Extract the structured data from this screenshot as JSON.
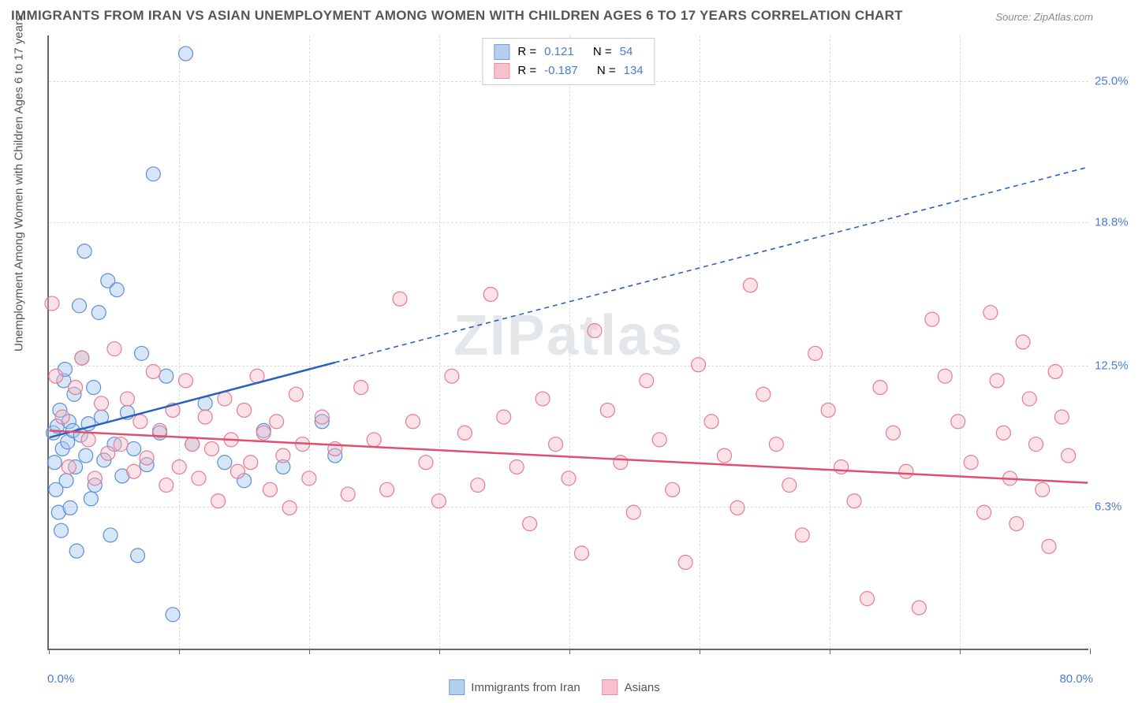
{
  "title": "IMMIGRANTS FROM IRAN VS ASIAN UNEMPLOYMENT AMONG WOMEN WITH CHILDREN AGES 6 TO 17 YEARS CORRELATION CHART",
  "source": "Source: ZipAtlas.com",
  "ylabel": "Unemployment Among Women with Children Ages 6 to 17 years",
  "watermark": "ZIPatlas",
  "chart": {
    "type": "scatter",
    "xlim": [
      0,
      80
    ],
    "ylim": [
      0,
      27
    ],
    "xticks": [
      0,
      10,
      20,
      30,
      40,
      50,
      60,
      70,
      80
    ],
    "yticks": [
      6.3,
      12.5,
      18.8,
      25.0
    ],
    "ytick_labels": [
      "6.3%",
      "12.5%",
      "18.8%",
      "25.0%"
    ],
    "x_start_label": "0.0%",
    "x_end_label": "80.0%",
    "background_color": "#ffffff",
    "grid_color": "#dddddd",
    "marker_radius": 9,
    "marker_stroke_width": 1.2,
    "line_width": 2.5,
    "series": [
      {
        "name": "Immigrants from Iran",
        "fill": "#a7c7ec",
        "stroke": "#5b8fd6",
        "fill_opacity": 0.45,
        "line_color": "#2b5fc0",
        "R": "0.121",
        "N": "54",
        "trend": {
          "x1": 0,
          "y1": 9.3,
          "x2": 22,
          "y2": 12.6,
          "dash_x2": 80,
          "dash_y2": 21.2
        },
        "points": [
          [
            0.3,
            9.5
          ],
          [
            0.4,
            8.2
          ],
          [
            0.5,
            7.0
          ],
          [
            0.6,
            9.8
          ],
          [
            0.7,
            6.0
          ],
          [
            0.8,
            10.5
          ],
          [
            0.9,
            5.2
          ],
          [
            1.0,
            8.8
          ],
          [
            1.1,
            11.8
          ],
          [
            1.2,
            12.3
          ],
          [
            1.3,
            7.4
          ],
          [
            1.4,
            9.1
          ],
          [
            1.5,
            10.0
          ],
          [
            1.6,
            6.2
          ],
          [
            1.8,
            9.6
          ],
          [
            1.9,
            11.2
          ],
          [
            2.0,
            8.0
          ],
          [
            2.1,
            4.3
          ],
          [
            2.3,
            15.1
          ],
          [
            2.4,
            9.4
          ],
          [
            2.5,
            12.8
          ],
          [
            2.7,
            17.5
          ],
          [
            2.8,
            8.5
          ],
          [
            3.0,
            9.9
          ],
          [
            3.2,
            6.6
          ],
          [
            3.4,
            11.5
          ],
          [
            3.5,
            7.2
          ],
          [
            3.8,
            14.8
          ],
          [
            4.0,
            10.2
          ],
          [
            4.2,
            8.3
          ],
          [
            4.5,
            16.2
          ],
          [
            4.7,
            5.0
          ],
          [
            5.0,
            9.0
          ],
          [
            5.2,
            15.8
          ],
          [
            5.6,
            7.6
          ],
          [
            6.0,
            10.4
          ],
          [
            6.5,
            8.8
          ],
          [
            6.8,
            4.1
          ],
          [
            7.1,
            13.0
          ],
          [
            7.5,
            8.1
          ],
          [
            8.0,
            20.9
          ],
          [
            8.5,
            9.5
          ],
          [
            9.0,
            12.0
          ],
          [
            9.5,
            1.5
          ],
          [
            10.5,
            26.2
          ],
          [
            11.0,
            9.0
          ],
          [
            12.0,
            10.8
          ],
          [
            13.5,
            8.2
          ],
          [
            15.0,
            7.4
          ],
          [
            16.5,
            9.6
          ],
          [
            18.0,
            8.0
          ],
          [
            21.0,
            10.0
          ],
          [
            22.0,
            8.5
          ]
        ]
      },
      {
        "name": "Asians",
        "fill": "#f5b6c4",
        "stroke": "#e77a93",
        "fill_opacity": 0.4,
        "line_color": "#e0506e",
        "R": "-0.187",
        "N": "134",
        "trend": {
          "x1": 0,
          "y1": 9.6,
          "x2": 80,
          "y2": 7.3
        },
        "points": [
          [
            0.2,
            15.2
          ],
          [
            0.5,
            12.0
          ],
          [
            1.0,
            10.2
          ],
          [
            1.5,
            8.0
          ],
          [
            2.0,
            11.5
          ],
          [
            2.5,
            12.8
          ],
          [
            3.0,
            9.2
          ],
          [
            3.5,
            7.5
          ],
          [
            4.0,
            10.8
          ],
          [
            4.5,
            8.6
          ],
          [
            5.0,
            13.2
          ],
          [
            5.5,
            9.0
          ],
          [
            6.0,
            11.0
          ],
          [
            6.5,
            7.8
          ],
          [
            7.0,
            10.0
          ],
          [
            7.5,
            8.4
          ],
          [
            8.0,
            12.2
          ],
          [
            8.5,
            9.6
          ],
          [
            9.0,
            7.2
          ],
          [
            9.5,
            10.5
          ],
          [
            10.0,
            8.0
          ],
          [
            10.5,
            11.8
          ],
          [
            11.0,
            9.0
          ],
          [
            11.5,
            7.5
          ],
          [
            12.0,
            10.2
          ],
          [
            12.5,
            8.8
          ],
          [
            13.0,
            6.5
          ],
          [
            13.5,
            11.0
          ],
          [
            14.0,
            9.2
          ],
          [
            14.5,
            7.8
          ],
          [
            15.0,
            10.5
          ],
          [
            15.5,
            8.2
          ],
          [
            16.0,
            12.0
          ],
          [
            16.5,
            9.5
          ],
          [
            17.0,
            7.0
          ],
          [
            17.5,
            10.0
          ],
          [
            18.0,
            8.5
          ],
          [
            18.5,
            6.2
          ],
          [
            19.0,
            11.2
          ],
          [
            19.5,
            9.0
          ],
          [
            20.0,
            7.5
          ],
          [
            21.0,
            10.2
          ],
          [
            22.0,
            8.8
          ],
          [
            23.0,
            6.8
          ],
          [
            24.0,
            11.5
          ],
          [
            25.0,
            9.2
          ],
          [
            26.0,
            7.0
          ],
          [
            27.0,
            15.4
          ],
          [
            28.0,
            10.0
          ],
          [
            29.0,
            8.2
          ],
          [
            30.0,
            6.5
          ],
          [
            31.0,
            12.0
          ],
          [
            32.0,
            9.5
          ],
          [
            33.0,
            7.2
          ],
          [
            34.0,
            15.6
          ],
          [
            35.0,
            10.2
          ],
          [
            36.0,
            8.0
          ],
          [
            37.0,
            5.5
          ],
          [
            38.0,
            11.0
          ],
          [
            39.0,
            9.0
          ],
          [
            40.0,
            7.5
          ],
          [
            41.0,
            4.2
          ],
          [
            42.0,
            14.0
          ],
          [
            43.0,
            10.5
          ],
          [
            44.0,
            8.2
          ],
          [
            45.0,
            6.0
          ],
          [
            46.0,
            11.8
          ],
          [
            47.0,
            9.2
          ],
          [
            48.0,
            7.0
          ],
          [
            49.0,
            3.8
          ],
          [
            50.0,
            12.5
          ],
          [
            51.0,
            10.0
          ],
          [
            52.0,
            8.5
          ],
          [
            53.0,
            6.2
          ],
          [
            54.0,
            16.0
          ],
          [
            55.0,
            11.2
          ],
          [
            56.0,
            9.0
          ],
          [
            57.0,
            7.2
          ],
          [
            58.0,
            5.0
          ],
          [
            59.0,
            13.0
          ],
          [
            60.0,
            10.5
          ],
          [
            61.0,
            8.0
          ],
          [
            62.0,
            6.5
          ],
          [
            63.0,
            2.2
          ],
          [
            64.0,
            11.5
          ],
          [
            65.0,
            9.5
          ],
          [
            66.0,
            7.8
          ],
          [
            67.0,
            1.8
          ],
          [
            68.0,
            14.5
          ],
          [
            69.0,
            12.0
          ],
          [
            70.0,
            10.0
          ],
          [
            71.0,
            8.2
          ],
          [
            72.0,
            6.0
          ],
          [
            72.5,
            14.8
          ],
          [
            73.0,
            11.8
          ],
          [
            73.5,
            9.5
          ],
          [
            74.0,
            7.5
          ],
          [
            74.5,
            5.5
          ],
          [
            75.0,
            13.5
          ],
          [
            75.5,
            11.0
          ],
          [
            76.0,
            9.0
          ],
          [
            76.5,
            7.0
          ],
          [
            77.0,
            4.5
          ],
          [
            77.5,
            12.2
          ],
          [
            78.0,
            10.2
          ],
          [
            78.5,
            8.5
          ]
        ]
      }
    ]
  },
  "legend_labels": {
    "r_eq": "R  =",
    "n_eq": "N  ="
  },
  "bottom_legend": {
    "s1": "Immigrants from Iran",
    "s2": "Asians"
  }
}
